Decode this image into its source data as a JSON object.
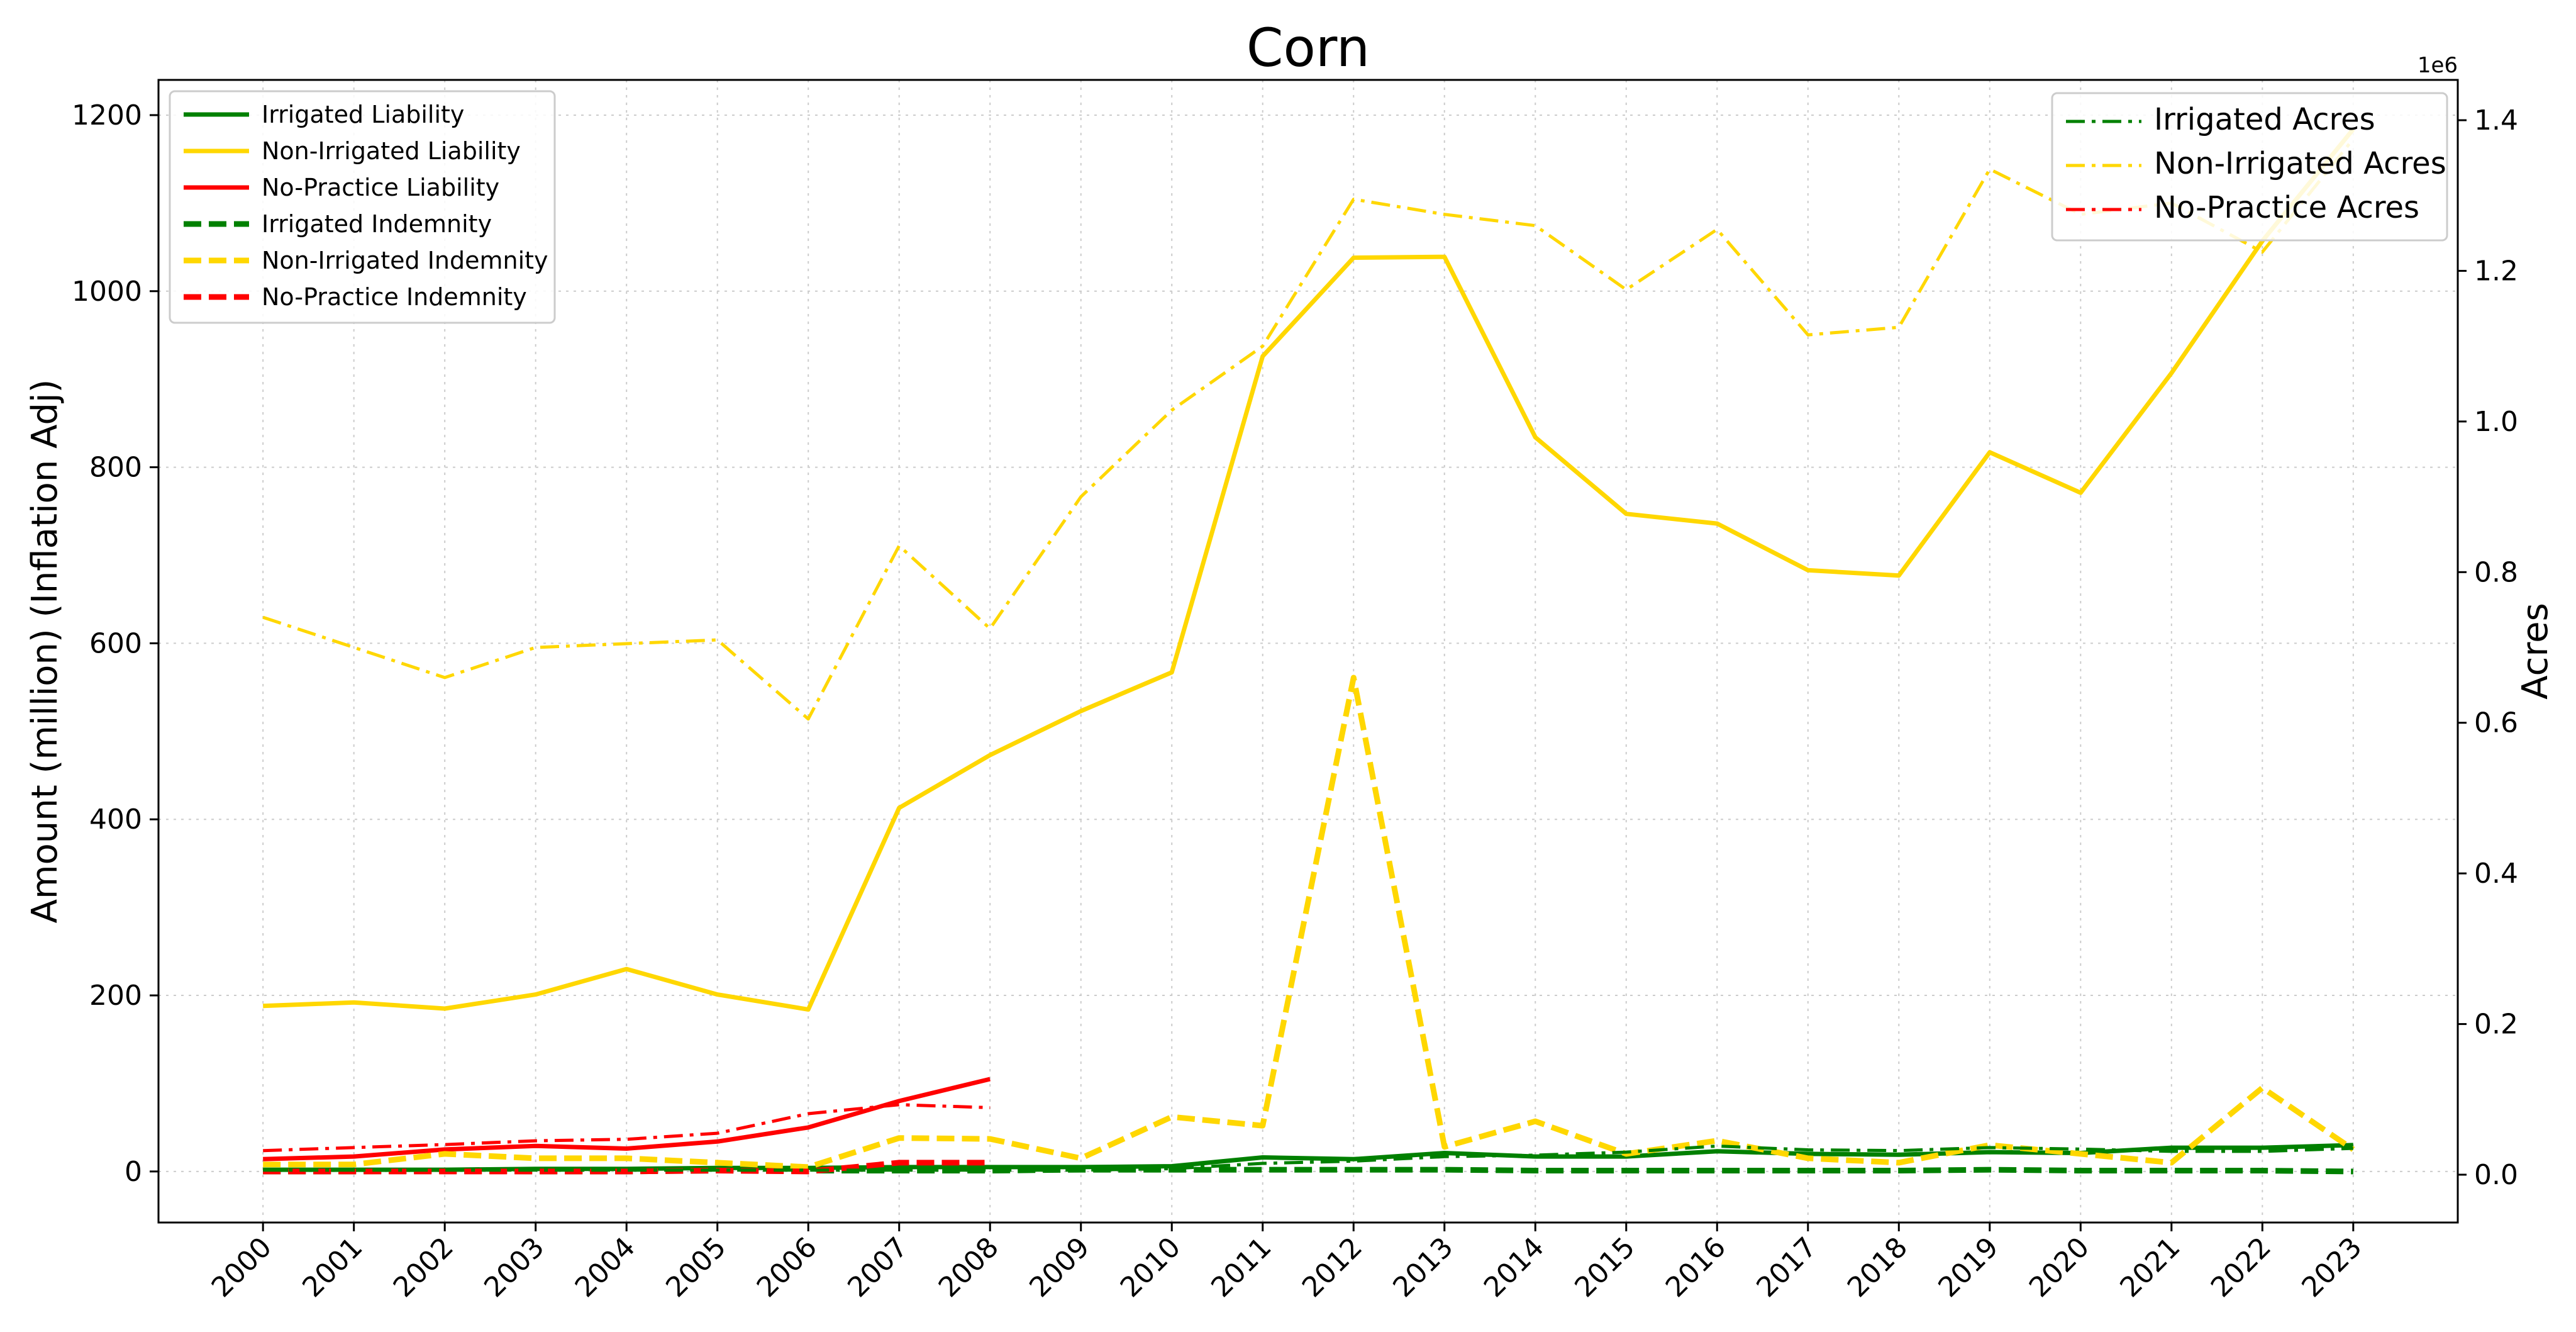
{
  "chart_data": {
    "type": "line",
    "title": "Corn",
    "xlabel": "",
    "ylabel": "Amount (million) (Inflation Adj)",
    "y2label": "Acres",
    "y2_offset_label": "1e6",
    "grid": true,
    "x": [
      2000,
      2001,
      2002,
      2003,
      2004,
      2005,
      2006,
      2007,
      2008,
      2009,
      2010,
      2011,
      2012,
      2013,
      2014,
      2015,
      2016,
      2017,
      2018,
      2019,
      2020,
      2021,
      2022,
      2023
    ],
    "xticks": [
      "2000",
      "2001",
      "2002",
      "2003",
      "2004",
      "2005",
      "2006",
      "2007",
      "2008",
      "2009",
      "2010",
      "2011",
      "2012",
      "2013",
      "2014",
      "2015",
      "2016",
      "2017",
      "2018",
      "2019",
      "2020",
      "2021",
      "2022",
      "2023"
    ],
    "ylim": [
      -58,
      1240
    ],
    "yticks": [
      "0",
      "200",
      "400",
      "600",
      "800",
      "1000",
      "1200"
    ],
    "y2lim": [
      -0.0635,
      1.4535
    ],
    "y2ticks": [
      "0.0",
      "0.2",
      "0.4",
      "0.6",
      "0.8",
      "1.0",
      "1.2",
      "1.4"
    ],
    "legend_left_position": "upper left",
    "legend_right_position": "upper right",
    "series": [
      {
        "name": "Irrigated Liability",
        "axis": "left",
        "style": "solid",
        "color": "#008000",
        "values": [
          2,
          2,
          2,
          3,
          3,
          4,
          4,
          5,
          5,
          5,
          6,
          16,
          14,
          21,
          17,
          17,
          23,
          20,
          19,
          22,
          21,
          27,
          27,
          30
        ]
      },
      {
        "name": "Non-Irrigated Liability",
        "axis": "left",
        "style": "solid",
        "color": "#FFD700",
        "values": [
          188,
          192,
          185,
          201,
          230,
          201,
          184,
          413,
          473,
          523,
          567,
          926,
          1038,
          1039,
          834,
          747,
          736,
          683,
          677,
          817,
          771,
          907,
          1057,
          1184
        ]
      },
      {
        "name": "No-Practice Liability",
        "axis": "left",
        "style": "solid",
        "color": "#FF0000",
        "values": [
          14,
          17,
          25,
          29,
          26,
          34,
          50,
          80,
          105,
          null,
          null,
          null,
          null,
          null,
          null,
          null,
          null,
          null,
          null,
          null,
          null,
          null,
          null,
          null
        ]
      },
      {
        "name": "Irrigated Indemnity",
        "axis": "left",
        "style": "dashed",
        "color": "#008000",
        "values": [
          0,
          0,
          1,
          0,
          0,
          1,
          1,
          1,
          1,
          2,
          2,
          2,
          2,
          2,
          1,
          1,
          1,
          1,
          1,
          2,
          1,
          1,
          1,
          0
        ]
      },
      {
        "name": "Non-Irrigated Indemnity",
        "axis": "left",
        "style": "dashed",
        "color": "#FFD700",
        "values": [
          8,
          8,
          20,
          15,
          15,
          10,
          5,
          38,
          37,
          15,
          62,
          52,
          561,
          28,
          57,
          20,
          35,
          15,
          10,
          30,
          20,
          10,
          95,
          25
        ]
      },
      {
        "name": "No-Practice Indemnity",
        "axis": "left",
        "style": "dashed",
        "color": "#FF0000",
        "values": [
          0,
          0,
          0,
          0,
          0,
          1,
          0,
          10,
          10,
          null,
          null,
          null,
          null,
          null,
          null,
          null,
          null,
          null,
          null,
          null,
          null,
          null,
          null,
          null
        ]
      },
      {
        "name": "Irrigated Acres",
        "axis": "right",
        "style": "dashdot",
        "color": "#008000",
        "values": [
          0.006,
          0.006,
          0.006,
          0.006,
          0.006,
          0.006,
          0.006,
          0.006,
          0.006,
          0.006,
          0.008,
          0.015,
          0.018,
          0.024,
          0.026,
          0.03,
          0.038,
          0.033,
          0.032,
          0.036,
          0.034,
          0.031,
          0.031,
          0.035
        ]
      },
      {
        "name": "Non-Irrigated Acres",
        "axis": "right",
        "style": "dashdot",
        "color": "#FFD700",
        "values": [
          0.74,
          0.7,
          0.66,
          0.7,
          0.705,
          0.71,
          0.605,
          0.835,
          0.725,
          0.9,
          1.015,
          1.1,
          1.295,
          1.275,
          1.26,
          1.175,
          1.255,
          1.115,
          1.125,
          1.335,
          1.275,
          1.29,
          1.225,
          1.375
        ]
      },
      {
        "name": "No-Practice Acres",
        "axis": "right",
        "style": "dashdot",
        "color": "#FF0000",
        "values": [
          0.032,
          0.036,
          0.04,
          0.045,
          0.047,
          0.055,
          0.081,
          0.093,
          0.089,
          null,
          null,
          null,
          null,
          null,
          null,
          null,
          null,
          null,
          null,
          null,
          null,
          null,
          null,
          null
        ]
      }
    ]
  }
}
